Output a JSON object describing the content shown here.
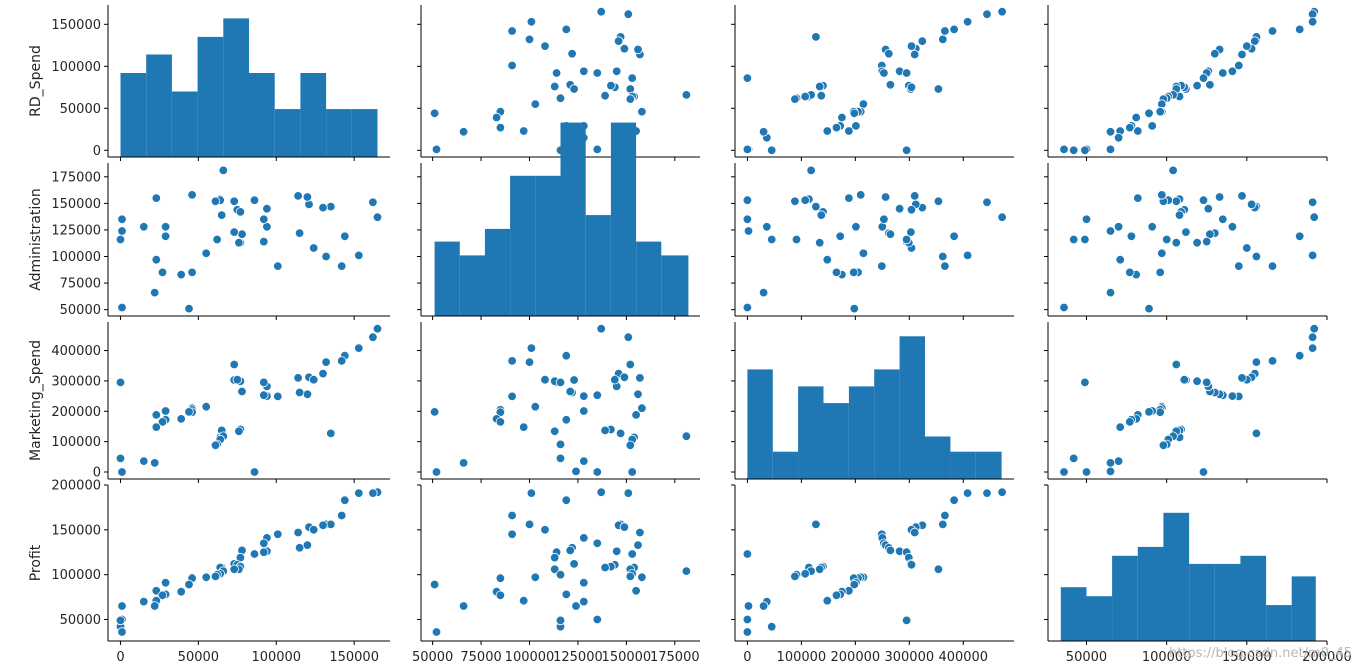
{
  "watermark": "https://blog.csdn.net/m0_45",
  "chart_data": {
    "type": "scatter",
    "title": "",
    "variables": [
      "RD_Spend",
      "Administration",
      "Marketing_Spend",
      "Profit"
    ],
    "axes": {
      "RD_Spend": {
        "lim": [
          -8000,
          173000
        ],
        "ticks": [
          0,
          50000,
          100000,
          150000
        ],
        "tick_labels": [
          "0",
          "50000",
          "100000",
          "150000"
        ]
      },
      "Administration": {
        "lim": [
          44000,
          188000
        ],
        "ticks": [
          50000,
          75000,
          100000,
          125000,
          150000,
          175000
        ],
        "tick_labels": [
          "50000",
          "75000",
          "100000",
          "125000",
          "150000",
          "175000"
        ]
      },
      "Marketing_Spend": {
        "lim": [
          -23000,
          494000
        ],
        "ticks": [
          0,
          100000,
          200000,
          300000,
          400000
        ],
        "tick_labels": [
          "0",
          "100000",
          "200000",
          "300000",
          "400000"
        ]
      },
      "Profit": {
        "lim": [
          26000,
          200000
        ],
        "ticks": [
          50000,
          100000,
          150000,
          200000
        ],
        "tick_labels": [
          "50000",
          "100000",
          "150000",
          "200000"
        ]
      }
    },
    "histograms": {
      "RD_Spend": {
        "edges": [
          0,
          16500,
          33000,
          49500,
          66000,
          82500,
          99000,
          115500,
          132000,
          148500,
          165000
        ],
        "counts": [
          100000,
          122000,
          78000,
          143000,
          165000,
          100000,
          57000,
          100000,
          57000,
          57000
        ]
      },
      "Administration": {
        "edges": [
          51000,
          64000,
          77000,
          90000,
          103000,
          116000,
          129000,
          142000,
          155000,
          168000,
          182000
        ],
        "counts": [
          70000,
          57000,
          82000,
          132000,
          132000,
          182000,
          95000,
          182000,
          70000,
          57000
        ]
      },
      "Marketing_Spend": {
        "edges": [
          0,
          47000,
          94000,
          141000,
          188000,
          235000,
          282000,
          329000,
          376000,
          423000,
          471000
        ],
        "counts": [
          361000,
          90000,
          305000,
          250000,
          305000,
          361000,
          470000,
          140000,
          90000,
          90000
        ]
      },
      "Profit": {
        "edges": [
          34000,
          50000,
          66000,
          82000,
          98000,
          114000,
          130000,
          146000,
          162000,
          178000,
          193000
        ],
        "counts": [
          60000,
          50000,
          95000,
          105000,
          143000,
          86000,
          86000,
          95000,
          40000,
          72000
        ]
      }
    },
    "points": [
      [
        165000,
        137000,
        472000,
        192000
      ],
      [
        162000,
        151000,
        444000,
        191000
      ],
      [
        153000,
        101000,
        408000,
        191000
      ],
      [
        144000,
        119000,
        383000,
        183000
      ],
      [
        142000,
        91000,
        366000,
        166000
      ],
      [
        132000,
        100000,
        362000,
        156000
      ],
      [
        135000,
        147000,
        127000,
        156000
      ],
      [
        130000,
        146000,
        324000,
        155000
      ],
      [
        121000,
        149000,
        312000,
        153000
      ],
      [
        124000,
        108000,
        304000,
        150000
      ],
      [
        114000,
        157000,
        310000,
        147000
      ],
      [
        101000,
        91000,
        249000,
        145000
      ],
      [
        94000,
        128000,
        250000,
        141000
      ],
      [
        92000,
        135000,
        253000,
        135000
      ],
      [
        120000,
        156000,
        256000,
        133000
      ],
      [
        115000,
        122000,
        262000,
        130000
      ],
      [
        78000,
        121000,
        265000,
        127000
      ],
      [
        94000,
        145000,
        282000,
        126000
      ],
      [
        92000,
        114000,
        295000,
        125000
      ],
      [
        86000,
        153000,
        0,
        123000
      ],
      [
        77000,
        113000,
        299000,
        119000
      ],
      [
        73000,
        123000,
        303000,
        112000
      ],
      [
        75000,
        144000,
        304000,
        111000
      ],
      [
        77000,
        142000,
        140000,
        109000
      ],
      [
        65000,
        139000,
        137000,
        108000
      ],
      [
        64000,
        154000,
        114000,
        108000
      ],
      [
        76000,
        113000,
        134000,
        106000
      ],
      [
        73000,
        152000,
        354000,
        106000
      ],
      [
        66000,
        181000,
        118000,
        104000
      ],
      [
        64000,
        153000,
        107000,
        101000
      ],
      [
        62000,
        116000,
        91000,
        100000
      ],
      [
        61000,
        152000,
        88000,
        98000
      ],
      [
        55000,
        103000,
        215000,
        97000
      ],
      [
        46000,
        158000,
        210000,
        97000
      ],
      [
        46000,
        85000,
        205000,
        96000
      ],
      [
        46000,
        85000,
        197000,
        96000
      ],
      [
        29000,
        128000,
        201000,
        91000
      ],
      [
        44000,
        51000,
        198000,
        89000
      ],
      [
        23000,
        155000,
        188000,
        82000
      ],
      [
        39000,
        83000,
        175000,
        81000
      ],
      [
        29000,
        119000,
        172000,
        78000
      ],
      [
        27000,
        85000,
        165000,
        77000
      ],
      [
        23000,
        97000,
        148000,
        71000
      ],
      [
        15000,
        128000,
        36000,
        70000
      ],
      [
        22000,
        66000,
        30000,
        65000
      ],
      [
        1000,
        124000,
        2000,
        65000
      ],
      [
        1000,
        135000,
        0,
        50000
      ],
      [
        0,
        116000,
        45000,
        42000
      ],
      [
        1000,
        52000,
        0,
        36000
      ],
      [
        0,
        116000,
        295000,
        49000
      ]
    ]
  }
}
